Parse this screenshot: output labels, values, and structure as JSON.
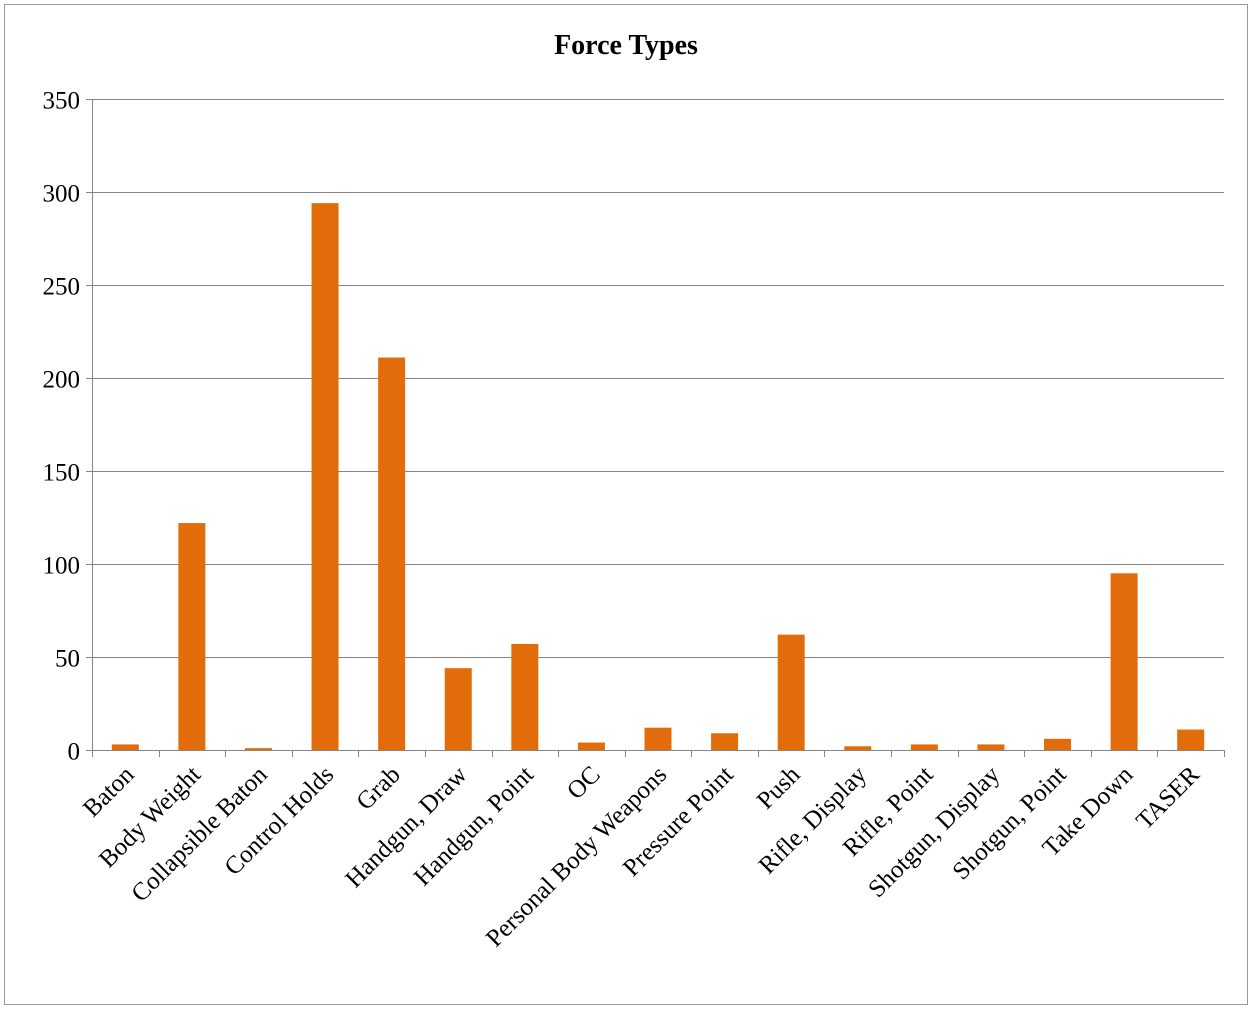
{
  "chart_data": {
    "type": "bar",
    "title": "Force Types",
    "xlabel": "",
    "ylabel": "",
    "categories": [
      "Baton",
      "Body Weight",
      "Collapsible Baton",
      "Control Holds",
      "Grab",
      "Handgun, Draw",
      "Handgun, Point",
      "OC",
      "Personal Body Weapons",
      "Pressure Point",
      "Push",
      "Rifle, Display",
      "Rifle, Point",
      "Shotgun, Display",
      "Shotgun, Point",
      "Take Down",
      "TASER"
    ],
    "values": [
      3,
      122,
      1,
      294,
      211,
      44,
      57,
      4,
      12,
      9,
      62,
      2,
      3,
      3,
      6,
      95,
      11
    ],
    "ylim": [
      0,
      350
    ],
    "yticks": [
      0,
      50,
      100,
      150,
      200,
      250,
      300,
      350
    ],
    "grid": true,
    "legend": "none",
    "colors": {
      "bar": "#E36C0A",
      "grid": "#868686",
      "axis": "#868686"
    }
  }
}
